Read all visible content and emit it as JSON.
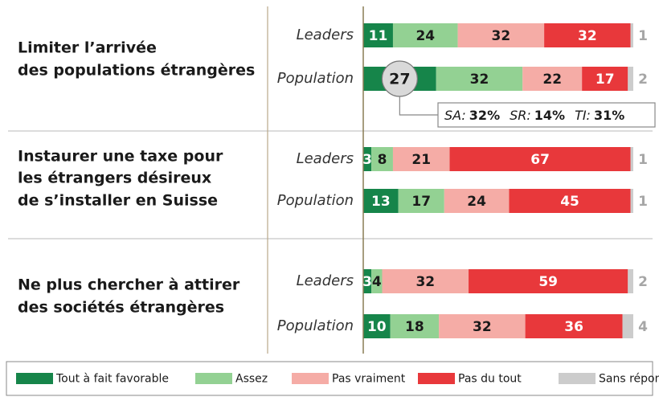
{
  "chart_data": {
    "type": "stacked_bar_horizontal",
    "groups": [
      {
        "lines": [
          "Limiter l’arrivée",
          "des populations étrangères"
        ],
        "rows": [
          0,
          1
        ]
      },
      {
        "lines": [
          "Instaurer une taxe pour",
          "les étrangers désireux",
          "de s’installer en Suisse"
        ],
        "rows": [
          2,
          3
        ]
      },
      {
        "lines": [
          "Ne plus chercher à attirer",
          "des sociétés étrangères"
        ],
        "rows": [
          4,
          5
        ]
      }
    ],
    "categories": [
      "Leaders",
      "Population",
      "Leaders",
      "Population",
      "Leaders",
      "Population"
    ],
    "xlim": [
      0,
      100
    ],
    "series": [
      {
        "name": "Tout à fait favorable",
        "color": "#16854a",
        "text_color": "#ffffff",
        "values": [
          11,
          27,
          3,
          13,
          3,
          10
        ]
      },
      {
        "name": "Assez",
        "color": "#93d193",
        "text_color": "#1a1a1a",
        "values": [
          24,
          32,
          8,
          17,
          4,
          18
        ]
      },
      {
        "name": "Pas vraiment",
        "color": "#f5aca6",
        "text_color": "#1a1a1a",
        "values": [
          32,
          22,
          21,
          24,
          32,
          32
        ]
      },
      {
        "name": "Pas du tout",
        "color": "#e8383b",
        "text_color": "#ffffff",
        "values": [
          32,
          17,
          67,
          45,
          59,
          36
        ]
      },
      {
        "name": "Sans réponse",
        "color": "#cccccc",
        "text_color": "#a6a6a6",
        "values": [
          1,
          2,
          1,
          1,
          2,
          4
        ]
      }
    ],
    "annotation": {
      "row": 1,
      "series": 0,
      "items": [
        {
          "label": "SA:",
          "value": "32%"
        },
        {
          "label": "SR:",
          "value": "14%"
        },
        {
          "label": "TI:",
          "value": "31%"
        }
      ]
    }
  }
}
